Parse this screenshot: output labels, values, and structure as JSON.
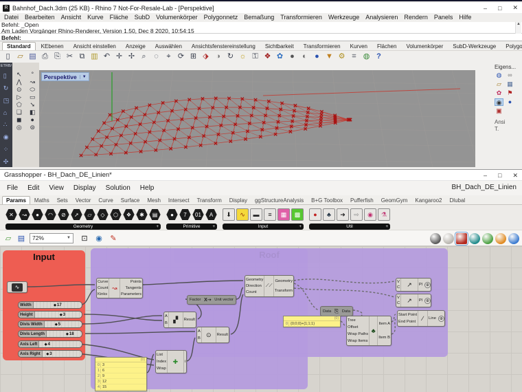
{
  "rhino": {
    "titlebar": {
      "title": "Bahnhof_Dach.3dm (25 KB) - Rhino 7 Not-For-Resale-Lab - [Perspektive]",
      "icon": "R",
      "min": "–",
      "max": "□",
      "close": "✕"
    },
    "menu": [
      "Datei",
      "Bearbeiten",
      "Ansicht",
      "Kurve",
      "Fläche",
      "SubD",
      "Volumenkörper",
      "Polygonnetz",
      "Bemaßung",
      "Transformieren",
      "Werkzeuge",
      "Analysieren",
      "Rendern",
      "Panels",
      "Hilfe"
    ],
    "command": {
      "history1": "Befehl: _Open",
      "history2": "Am Laden Vorgänger Rhino-Renderer, Version 1.50, Dec  8 2020, 10:54:15",
      "prompt": "Befehl:",
      "scroll_up": "▲",
      "scroll_down": "▼"
    },
    "toolbar_tabs": [
      "Standard",
      "KEbenen",
      "Ansicht einstellen",
      "Anzeige",
      "Auswählen",
      "Ansichtsfenstereinstellung",
      "Sichtbarkeit",
      "Transformieren",
      "Kurven",
      "Flächen",
      "Volumenkörper",
      "SubD-Werkzeuge",
      "Polygonnetze",
      "»"
    ],
    "toolbar_icons": [
      {
        "name": "new-file-icon",
        "glyph": "▯"
      },
      {
        "name": "open-file-icon",
        "glyph": "▱",
        "style": "color:#a07820"
      },
      {
        "name": "save-icon",
        "glyph": "▤",
        "style": "color:#4a5a9a"
      },
      {
        "name": "print-icon",
        "glyph": "⎙"
      },
      {
        "name": "copy-clipboard-icon",
        "glyph": "⎘"
      },
      {
        "name": "cut-icon",
        "glyph": "✂"
      },
      {
        "name": "copy-icon",
        "glyph": "⧉"
      },
      {
        "name": "paste-icon",
        "glyph": "▥",
        "style": "color:#b09a30"
      },
      {
        "name": "undo-icon",
        "glyph": "↶"
      },
      {
        "name": "pan-icon",
        "glyph": "✛"
      },
      {
        "name": "move-icon",
        "glyph": "✢"
      },
      {
        "name": "zoom-icon",
        "glyph": "⌕"
      },
      {
        "name": "zoom-window-icon",
        "glyph": "◌"
      },
      {
        "name": "zoom-selected-icon",
        "glyph": "⌖"
      },
      {
        "name": "zoom-extents-icon",
        "glyph": "⟳"
      },
      {
        "name": "viewport-layout-icon",
        "glyph": "⊞"
      },
      {
        "name": "display-mode-icon",
        "glyph": "⬗",
        "style": "color:#b03030"
      },
      {
        "name": "render-icon",
        "glyph": "◑",
        "style": "color:#777"
      },
      {
        "name": "orbit-icon",
        "glyph": "↻"
      },
      {
        "name": "spotlight-icon",
        "glyph": "☼",
        "style": "color:#c0a020"
      },
      {
        "name": "lock-icon",
        "glyph": "⚿"
      },
      {
        "name": "shield-icon",
        "glyph": "❖",
        "style": "color:#a02020"
      },
      {
        "name": "color-wheel-icon",
        "glyph": "✿",
        "style": "color:#3070c0"
      },
      {
        "name": "sphere-dark-icon",
        "glyph": "●",
        "style": "color:#555"
      },
      {
        "name": "sphere-light-icon",
        "glyph": "◐",
        "style": "color:#666"
      },
      {
        "name": "sphere-blue-icon",
        "glyph": "●",
        "style": "color:#2a52b0"
      },
      {
        "name": "filter-icon",
        "glyph": "▼",
        "style": "color:#c08020"
      },
      {
        "name": "gear-icon",
        "glyph": "⚙",
        "style": "color:#b09020"
      },
      {
        "name": "cascade-icon",
        "glyph": "⌗"
      },
      {
        "name": "earth-icon",
        "glyph": "◍",
        "style": "color:#3a8a3a"
      },
      {
        "name": "help-icon",
        "glyph": "?",
        "style": "color:#2a52b0;font-weight:bold"
      }
    ],
    "left_strip": {
      "label": "ETRB/",
      "icons": [
        {
          "name": "trash-icon",
          "glyph": "▯"
        },
        {
          "name": "import-icon",
          "glyph": "↻"
        },
        {
          "name": "export-icon",
          "glyph": "◳"
        },
        {
          "name": "home-icon",
          "glyph": "⌂"
        },
        {
          "name": "points-icon",
          "glyph": "∴"
        },
        {
          "name": "link-icon",
          "glyph": "◉"
        },
        {
          "name": "dots-icon",
          "glyph": "⁘"
        },
        {
          "name": "axis-icon",
          "glyph": "✣"
        }
      ]
    },
    "palette_icons": [
      {
        "name": "select-arrow-icon",
        "glyph": "↖"
      },
      {
        "name": "point-tool-icon",
        "glyph": "°"
      },
      {
        "name": "polyline-tool-icon",
        "glyph": "⋀"
      },
      {
        "name": "curve-tool-icon",
        "glyph": "↝"
      },
      {
        "name": "circle-tool-icon",
        "glyph": "⊙"
      },
      {
        "name": "ellipse-tool-icon",
        "glyph": "⬭"
      },
      {
        "name": "arc-tool-icon",
        "glyph": "▷"
      },
      {
        "name": "rectangle-tool-icon",
        "glyph": "▭"
      },
      {
        "name": "polygon-tool-icon",
        "glyph": "⬠"
      },
      {
        "name": "freeform-tool-icon",
        "glyph": "➘"
      },
      {
        "name": "surface-tool-icon",
        "glyph": "❏"
      },
      {
        "name": "patch-tool-icon",
        "glyph": "◧"
      },
      {
        "name": "box-tool-icon",
        "glyph": "◼"
      },
      {
        "name": "sphere-tool-icon",
        "glyph": "●"
      },
      {
        "name": "torus-tool-icon",
        "glyph": "◎"
      },
      {
        "name": "pipe-tool-icon",
        "glyph": "⊜"
      }
    ],
    "viewport": {
      "label": "Perspektive",
      "dropdown": "▼",
      "model": {
        "rows": 6,
        "cols": 19,
        "marker_color": "#a81414",
        "line_color": "#c23b32",
        "axis_color": "#2e9e2e",
        "grid_color": "#9e9b98",
        "background": "#949494"
      }
    },
    "right_panel": {
      "header": "Eigens...",
      "footer": "Ansi",
      "footer2": "T.",
      "icons": [
        {
          "name": "globe-icon",
          "glyph": "◍",
          "style": "color:#2a52b0"
        },
        {
          "name": "link-icon",
          "glyph": "∞",
          "style": "color:#777"
        },
        {
          "name": "folder-icon",
          "glyph": "▱",
          "style": "color:#a07820"
        },
        {
          "name": "chip-icon",
          "glyph": "▦",
          "style": "color:#55709a"
        },
        {
          "name": "color-wheel-icon",
          "glyph": "✿",
          "style": "color:#c03060"
        },
        {
          "name": "flag-icon",
          "glyph": "⚑",
          "style": "color:#b02020"
        },
        {
          "name": "camera-icon",
          "glyph": "◉",
          "sel": true
        },
        {
          "name": "material-icon",
          "glyph": "●",
          "style": "color:#2a52b0"
        },
        {
          "name": "layout-icon",
          "glyph": "▣",
          "style": "color:#b03030"
        }
      ]
    }
  },
  "gh": {
    "titlebar": {
      "title": "Grasshopper - BH_Dach_DE_Linien*",
      "min": "–",
      "max": "□",
      "close": "✕"
    },
    "menu": [
      "File",
      "Edit",
      "View",
      "Display",
      "Solution",
      "Help"
    ],
    "doc_label": "BH_Dach_DE_Linien",
    "tabs": [
      "Params",
      "Maths",
      "Sets",
      "Vector",
      "Curve",
      "Surface",
      "Mesh",
      "Intersect",
      "Transform",
      "Display",
      "ggStructureAnalysis",
      "B+G Toolbox",
      "Pufferfish",
      "GeomGym",
      "Kangaroo2",
      "Dlubal"
    ],
    "ribbon": {
      "groups": [
        {
          "label": "Geometry",
          "more": "+",
          "kind": "hex",
          "icons": [
            {
              "name": "geometry-circle-icon",
              "glyph": "✕"
            },
            {
              "name": "geometry-curve-icon",
              "glyph": "↝"
            },
            {
              "name": "geometry-point-icon",
              "glyph": "●"
            },
            {
              "name": "geometry-arc-icon",
              "glyph": "◠"
            },
            {
              "name": "geometry-plane-icon",
              "glyph": "⊘"
            },
            {
              "name": "geometry-vector-icon",
              "glyph": "➚"
            },
            {
              "name": "geometry-surface-icon",
              "glyph": "▱"
            },
            {
              "name": "geometry-box-icon",
              "glyph": "◇"
            },
            {
              "name": "geometry-brep-icon",
              "glyph": "⬡"
            },
            {
              "name": "geometry-mesh-icon",
              "glyph": "❖"
            },
            {
              "name": "geometry-subd-icon",
              "glyph": "✱"
            },
            {
              "name": "geometry-group-icon",
              "glyph": "▤"
            }
          ]
        },
        {
          "label": "Primitive",
          "more": "+",
          "kind": "hex",
          "icons": [
            {
              "name": "primitive-boolean-icon",
              "glyph": "●"
            },
            {
              "name": "primitive-integer-icon",
              "glyph": "7"
            },
            {
              "name": "primitive-number-icon",
              "glyph": "01"
            },
            {
              "name": "primitive-text-icon",
              "glyph": "A"
            }
          ]
        },
        {
          "label": "Input",
          "more": "+",
          "kind": "sq",
          "icons": [
            {
              "name": "import-geometry-icon",
              "glyph": "⬇"
            },
            {
              "name": "graph-mapper-icon",
              "glyph": "∿",
              "style": "background:#f5d93a;color:#8a2a00"
            },
            {
              "name": "number-slider-icon",
              "glyph": "▬"
            },
            {
              "name": "panel-icon",
              "glyph": "≡"
            },
            {
              "name": "data-recorder-icon",
              "glyph": "▦",
              "style": "background:#e060a8;color:#fff"
            },
            {
              "name": "cluster-icon",
              "glyph": "▩",
              "style": "background:#58c832;color:#fff"
            }
          ]
        },
        {
          "label": "Util",
          "more": "+",
          "kind": "sq",
          "icons": [
            {
              "name": "data-dam-icon",
              "glyph": "●",
              "style": "color:#c02020"
            },
            {
              "name": "tree-icon",
              "glyph": "♣",
              "style": "color:#234"
            },
            {
              "name": "relay-icon",
              "glyph": "➜",
              "style": "color:#222"
            },
            {
              "name": "jump-icon",
              "glyph": "⇨",
              "style": "color:#888"
            },
            {
              "name": "galapagos-icon",
              "glyph": "◉",
              "style": "color:#c03070"
            },
            {
              "name": "flask-icon",
              "glyph": "⚗",
              "style": "color:#c03070"
            }
          ]
        }
      ]
    },
    "toolbar": {
      "zoom": "72%",
      "zoom_dd": "▼",
      "left_icons": [
        {
          "name": "open-document-icon",
          "glyph": "▱",
          "style": "color:#4a9a3a"
        },
        {
          "name": "save-document-icon",
          "glyph": "▤",
          "style": "color:#2a52b0"
        }
      ],
      "mid_icons": [
        {
          "name": "zoom-extents-icon",
          "glyph": "⊡"
        },
        {
          "name": "preview-eye-icon",
          "glyph": "◉",
          "style": "color:#2a6ab0"
        },
        {
          "name": "sketch-pen-icon",
          "glyph": "✎",
          "style": "color:#c03020"
        }
      ],
      "preview_icons": [
        {
          "name": "preview-off-icon",
          "bg": "#5a5a5a"
        },
        {
          "name": "preview-wire-icon",
          "bg": "#b8b4ae"
        },
        {
          "name": "preview-shaded-icon",
          "bg": "#b3281e",
          "active": true
        },
        {
          "name": "display-teal-icon",
          "bg": "#1e8a8a"
        },
        {
          "name": "display-green-icon",
          "bg": "#4aa040"
        },
        {
          "name": "display-orange-icon",
          "bg": "#e08a20"
        },
        {
          "name": "display-blue-icon",
          "bg": "#3a7ad0"
        }
      ]
    },
    "canvas": {
      "groups": {
        "input": {
          "title": "Input",
          "color": "#ee5d52"
        },
        "roof": {
          "title": "Roof",
          "color": "#b49ade"
        }
      },
      "sliders": [
        {
          "label": "Width",
          "value": "17",
          "knob": "left:42%"
        },
        {
          "label": "Height",
          "value": "3",
          "knob": "left:53%"
        },
        {
          "label": "Divis Width",
          "value": "5",
          "knob": "left:28%"
        },
        {
          "label": "Divis Length",
          "value": "18",
          "knob": "left:55%"
        },
        {
          "label": "Axis Left",
          "value": "4",
          "knob": "left:12%"
        },
        {
          "label": "Axis Right",
          "value": "3",
          "knob": "left:10%"
        }
      ],
      "components": {
        "divide": {
          "in": [
            "Curve",
            "Count",
            "Kinks"
          ],
          "out": [
            "Points",
            "Tangents",
            "Parameters"
          ]
        },
        "unit": {
          "in": "Factor",
          "icon": "X",
          "label": "Unit vector"
        },
        "division": {
          "a": "A",
          "b": "B",
          "out": "Result"
        },
        "multiplication": {
          "a": "A",
          "b": "B",
          "out": "Result"
        },
        "list_item": {
          "in": [
            "List",
            "Index",
            "Wrap"
          ],
          "out": "i"
        },
        "array": {
          "in": [
            "Geometry",
            "Direction",
            "Count"
          ],
          "out": [
            "Geometry",
            "Transform"
          ]
        },
        "data": {
          "in": "Data",
          "out": "Data"
        },
        "relative_item": {
          "in": [
            "Tree",
            "Offset",
            "Wrap Paths",
            "Wrap Items"
          ],
          "out": [
            "Item A",
            "Item B"
          ]
        },
        "pline": {
          "in": [
            "V",
            "C"
          ],
          "out": "Pl"
        },
        "line": {
          "in": [
            "Start Point",
            "End Point"
          ],
          "out": "Line"
        }
      },
      "panels": {
        "list": {
          "header": "{0}",
          "rows": [
            {
              "i": "0",
              "v": "3"
            },
            {
              "i": "1",
              "v": "6"
            },
            {
              "i": "2",
              "v": "9"
            },
            {
              "i": "3",
              "v": "12"
            },
            {
              "i": "4",
              "v": "15"
            }
          ]
        },
        "path": {
          "header": "{0}",
          "rows": [
            {
              "i": "0",
              "v": "{0;0;0}+{1;1;1}"
            }
          ]
        }
      }
    }
  }
}
